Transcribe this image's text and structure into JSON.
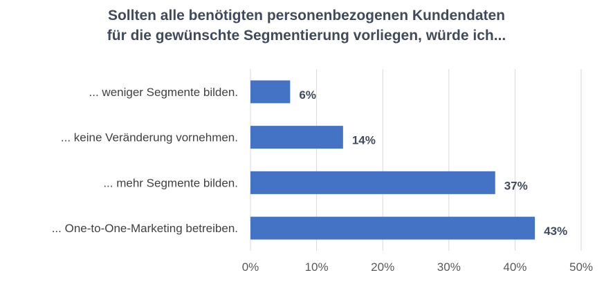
{
  "chart_data": {
    "type": "bar",
    "orientation": "horizontal",
    "title_lines": [
      "Sollten alle benötigten personenbezogenen Kundendaten",
      "für die gewünschte Segmentierung vorliegen, würde ich..."
    ],
    "categories": [
      "... weniger Segmente bilden.",
      "... keine Veränderung vornehmen.",
      "... mehr Segmente bilden.",
      "... One-to-One-Marketing betreiben."
    ],
    "values": [
      6,
      14,
      37,
      43
    ],
    "data_labels": [
      "6%",
      "14%",
      "37%",
      "43%"
    ],
    "x_ticks": [
      0,
      10,
      20,
      30,
      40,
      50
    ],
    "x_tick_labels": [
      "0%",
      "10%",
      "20%",
      "30%",
      "40%",
      "50%"
    ],
    "xlim": [
      0,
      50
    ],
    "grid": true,
    "legend": "none",
    "bar_color": "#4472c4",
    "grid_color": "#d9d9d9",
    "title_color": "#404a5c"
  }
}
